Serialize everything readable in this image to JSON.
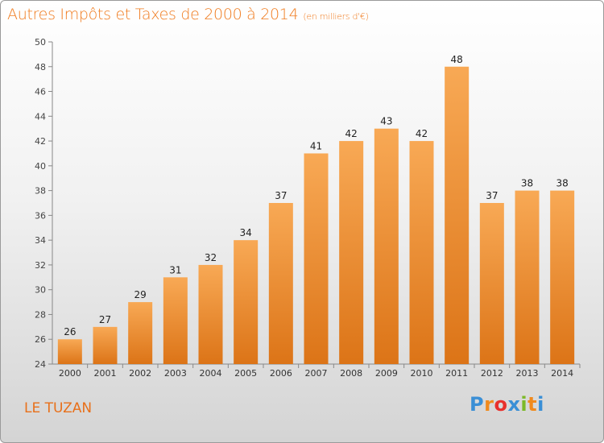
{
  "title": "Autres Impôts et Taxes de 2000 à 2014",
  "unit": "(en milliers d'€)",
  "commune": "LE TUZAN",
  "logo": {
    "letters": [
      "P",
      "r",
      "o",
      "x",
      "i",
      "t",
      "i"
    ],
    "colors": [
      "#3a8fd6",
      "#f08a1d",
      "#e8302c",
      "#3a8fd6",
      "#7cb928",
      "#f08a1d",
      "#3a8fd6"
    ]
  },
  "chart_data": {
    "type": "bar",
    "categories": [
      "2000",
      "2001",
      "2002",
      "2003",
      "2004",
      "2005",
      "2006",
      "2007",
      "2008",
      "2009",
      "2010",
      "2011",
      "2012",
      "2013",
      "2014"
    ],
    "values": [
      26,
      27,
      29,
      31,
      32,
      34,
      37,
      41,
      42,
      43,
      42,
      48,
      37,
      38,
      38
    ],
    "ylim": [
      24,
      50
    ],
    "yticks": [
      24,
      26,
      28,
      30,
      32,
      34,
      36,
      38,
      40,
      42,
      44,
      46,
      48,
      50
    ],
    "grid": false,
    "colors": {
      "bar_top": "#f8a955",
      "bar_bottom": "#dc7417",
      "label": "#222222",
      "axis": "#888888"
    }
  }
}
